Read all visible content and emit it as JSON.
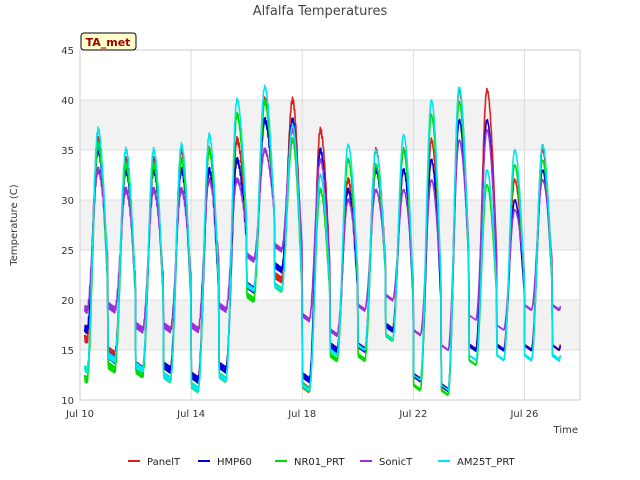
{
  "chart_data": {
    "type": "line",
    "title": "Alfalfa Temperatures",
    "xlabel": "Time",
    "ylabel": "Temperature (C)",
    "annotation": "TA_met",
    "ylim": [
      10,
      45
    ],
    "yticks": [
      10,
      15,
      20,
      25,
      30,
      35,
      40,
      45
    ],
    "xlim_days": [
      0,
      18
    ],
    "xticks": [
      {
        "day": 0,
        "label": "Jul 10"
      },
      {
        "day": 4,
        "label": "Jul 14"
      },
      {
        "day": 8,
        "label": "Jul 18"
      },
      {
        "day": 12,
        "label": "Jul 22"
      },
      {
        "day": 16,
        "label": "Jul 26"
      }
    ],
    "grid": true,
    "legend_position": "bottom",
    "daily_extremes_note": "daily min/max per series, days Jul 10 to Jul 26 (17 days)",
    "series": [
      {
        "name": "PanelT",
        "color": "#dd1f1f",
        "mins": [
          16,
          14.5,
          13,
          13,
          12,
          13,
          21,
          22,
          11,
          15,
          15,
          17,
          12,
          11,
          15,
          15,
          15
        ],
        "maxs": [
          36,
          34,
          34,
          35,
          35,
          36,
          40,
          40,
          37,
          32,
          35,
          35,
          36,
          41,
          41,
          32,
          35
        ]
      },
      {
        "name": "HMP60",
        "color": "#0000dd",
        "mins": [
          17,
          14,
          13,
          13,
          12,
          13,
          21,
          23,
          12,
          15,
          15,
          17,
          12,
          11,
          15,
          15,
          15
        ],
        "maxs": [
          35,
          33,
          33,
          33,
          33,
          34,
          38,
          38,
          35,
          31,
          33,
          33,
          34,
          38,
          38,
          30,
          33
        ]
      },
      {
        "name": "NR01_PRT",
        "color": "#00dd00",
        "mins": [
          12,
          13,
          12.5,
          12,
          11,
          12,
          20,
          21,
          11,
          14,
          14,
          16,
          11,
          10.5,
          13.5,
          14,
          14
        ]
      },
      {
        "name": "SonicT",
        "color": "#9b30d9",
        "mins": [
          19,
          19,
          17,
          17,
          17,
          19,
          24,
          25,
          18,
          16.5,
          19,
          20,
          16.5,
          15,
          18,
          17,
          19
        ],
        "maxs": [
          33,
          31,
          31,
          31,
          32,
          32,
          35,
          37,
          34,
          30,
          31,
          31,
          32,
          36,
          37,
          29,
          32
        ]
      },
      {
        "name": "AM25T_PRT",
        "color": "#00e5ee",
        "mins": [
          13,
          14,
          13,
          12,
          11,
          12,
          21,
          21,
          11,
          14.5,
          15,
          16,
          12,
          11,
          14,
          14,
          14
        ],
        "maxs": [
          37,
          35,
          35,
          35.5,
          36.5,
          40,
          41.3,
          37.5,
          32.5,
          35.5,
          35,
          36.5,
          40,
          41.3,
          33,
          35,
          35.5
        ]
      }
    ]
  }
}
